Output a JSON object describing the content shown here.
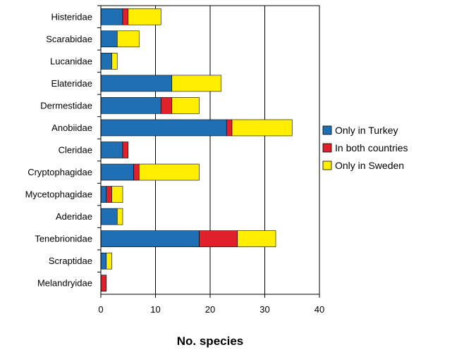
{
  "chart_data": {
    "type": "bar",
    "orientation": "horizontal",
    "stacked": true,
    "categories": [
      "Histeridae",
      "Scarabidae",
      "Lucanidae",
      "Elateridae",
      "Dermestidae",
      "Anobiidae",
      "Cleridae",
      "Cryptophagidae",
      "Mycetophagidae",
      "Aderidae",
      "Tenebrionidae",
      "Scraptidae",
      "Melandryidae"
    ],
    "series": [
      {
        "name": "Only in Turkey",
        "color": "#1f6fb5",
        "values": [
          4,
          3,
          2,
          13,
          11,
          23,
          4,
          6,
          1,
          3,
          18,
          1,
          0
        ]
      },
      {
        "name": "In both countries",
        "color": "#e0202a",
        "values": [
          1,
          0,
          0,
          0,
          2,
          1,
          1,
          1,
          1,
          0,
          7,
          0,
          1
        ]
      },
      {
        "name": "Only in Sweden",
        "color": "#ffee00",
        "values": [
          6,
          4,
          1,
          9,
          5,
          11,
          0,
          11,
          2,
          1,
          7,
          1,
          0
        ]
      }
    ],
    "xlabel": "No. species",
    "xlim": [
      0,
      40
    ],
    "xticks": [
      0,
      10,
      20,
      30,
      40
    ],
    "grid": "vertical major gridlines",
    "legend_position": "right"
  }
}
